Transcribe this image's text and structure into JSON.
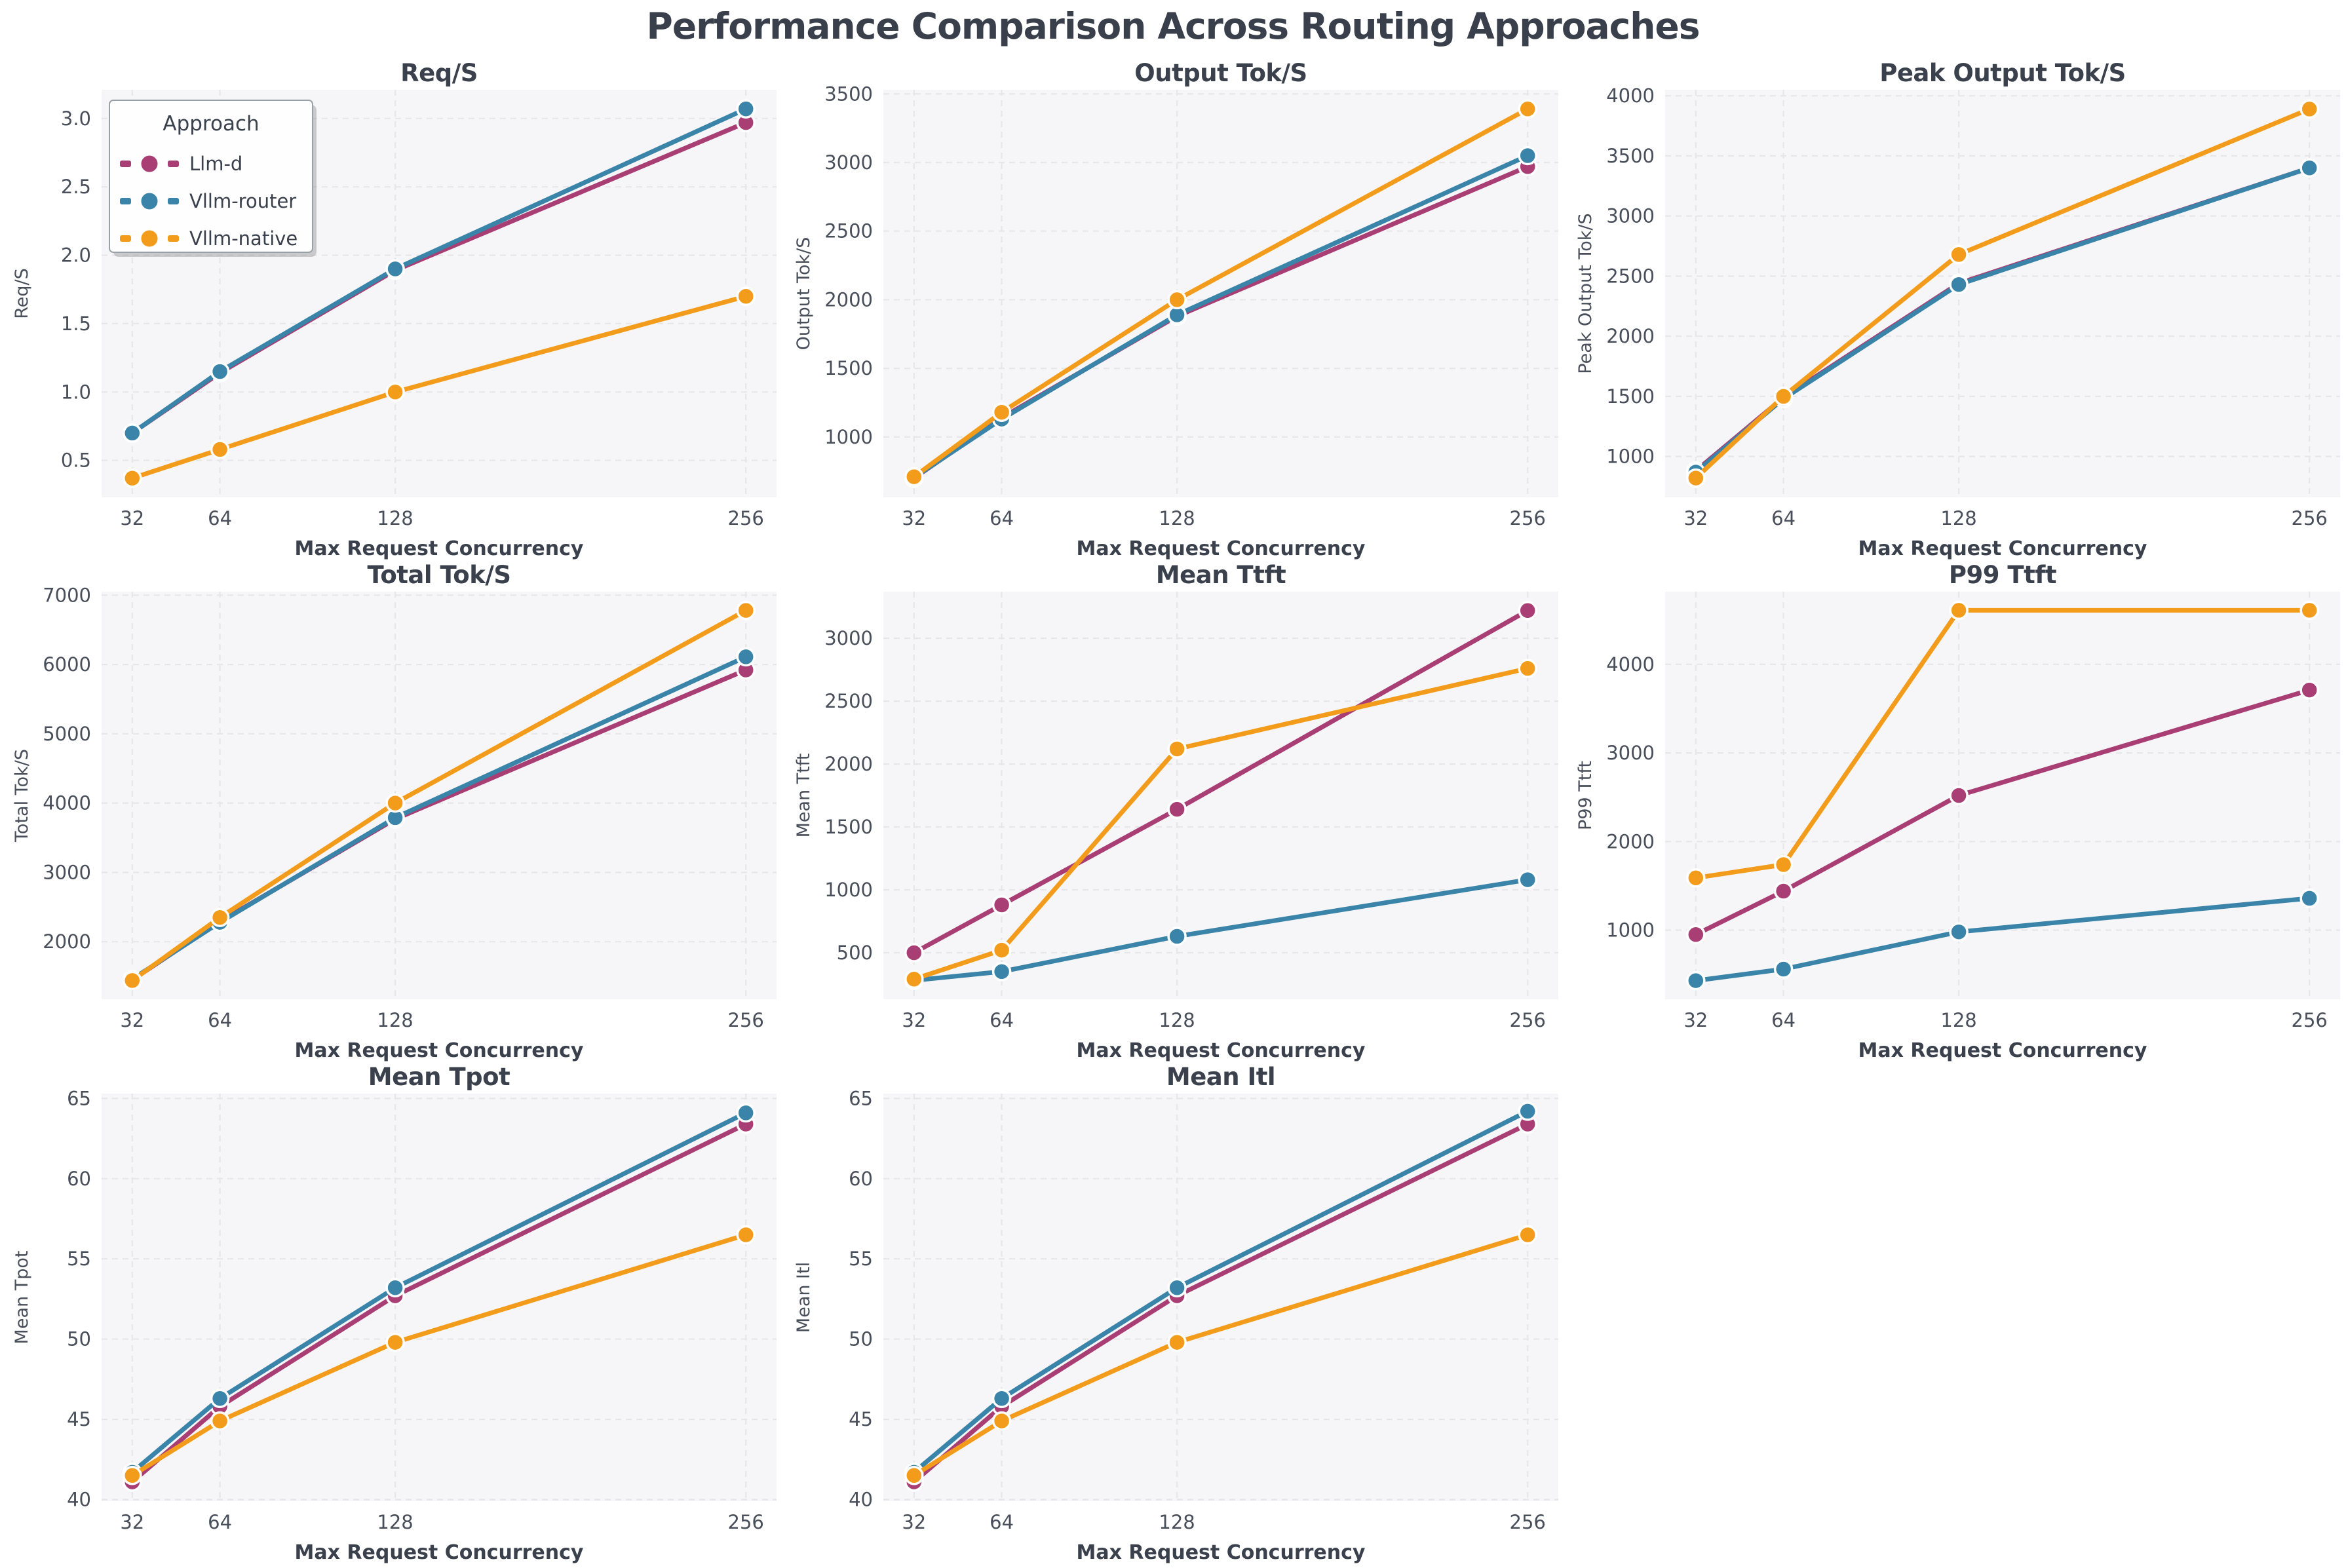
{
  "title": "Performance Comparison Across Routing Approaches",
  "x_axis": {
    "label": "Max Request Concurrency",
    "ticks": [
      "32",
      "64",
      "128",
      "256"
    ],
    "tick_values": [
      32,
      64,
      128,
      256
    ],
    "range": [
      20.8,
      267.2
    ]
  },
  "legend": {
    "title": "Approach",
    "chart_index": 0,
    "position": "upper-left-of-first-chart",
    "entries": [
      {
        "name": "Llm-d",
        "color": "#A83E74"
      },
      {
        "name": "Vllm-router",
        "color": "#3984A8"
      },
      {
        "name": "Vllm-native",
        "color": "#F39C1B"
      }
    ]
  },
  "style": {
    "figure_bg": "#FFFFFF",
    "plot_bg": "#F6F6F8",
    "grid_color": "#E7E7EA",
    "title_color": "#3A414C",
    "tick_color": "#494F5A",
    "legend_bg": "#FEFEFE",
    "legend_border": "#9AA0A8",
    "marker_edge": "#FFFFFF"
  },
  "chart_data": [
    {
      "type": "line",
      "title": "Req/S",
      "ylabel": "Req/S",
      "grid": true,
      "x": [
        32,
        64,
        128,
        256
      ],
      "yticks": [
        0.5,
        1.0,
        1.5,
        2.0,
        2.5,
        3.0
      ],
      "ytick_labels": [
        "0.5",
        "1.0",
        "1.5",
        "2.0",
        "2.5",
        "3.0"
      ],
      "ylim": [
        0.23,
        3.21
      ],
      "series": [
        {
          "name": "Llm-d",
          "values": [
            0.7,
            1.14,
            1.89,
            2.97
          ]
        },
        {
          "name": "Vllm-router",
          "values": [
            0.7,
            1.15,
            1.9,
            3.07
          ]
        },
        {
          "name": "Vllm-native",
          "values": [
            0.37,
            0.58,
            1.0,
            1.7
          ]
        }
      ]
    },
    {
      "type": "line",
      "title": "Output Tok/S",
      "ylabel": "Output Tok/S",
      "grid": true,
      "x": [
        32,
        64,
        128,
        256
      ],
      "yticks": [
        1000,
        1500,
        2000,
        2500,
        3000,
        3500
      ],
      "ytick_labels": [
        "1000",
        "1500",
        "2000",
        "2500",
        "3000",
        "3500"
      ],
      "ylim": [
        560,
        3530
      ],
      "series": [
        {
          "name": "Llm-d",
          "values": [
            700,
            1140,
            1880,
            2970
          ]
        },
        {
          "name": "Vllm-router",
          "values": [
            705,
            1130,
            1890,
            3050
          ]
        },
        {
          "name": "Vllm-native",
          "values": [
            710,
            1180,
            2000,
            3390
          ]
        }
      ]
    },
    {
      "type": "line",
      "title": "Peak Output Tok/S",
      "ylabel": "Peak Output Tok/S",
      "grid": true,
      "x": [
        32,
        64,
        128,
        256
      ],
      "yticks": [
        1000,
        1500,
        2000,
        2500,
        3000,
        3500,
        4000
      ],
      "ytick_labels": [
        "1000",
        "1500",
        "2000",
        "2500",
        "3000",
        "3500",
        "4000"
      ],
      "ylim": [
        660,
        4050
      ],
      "series": [
        {
          "name": "Llm-d",
          "values": [
            880,
            1490,
            2440,
            3400
          ]
        },
        {
          "name": "Vllm-router",
          "values": [
            870,
            1480,
            2430,
            3400
          ]
        },
        {
          "name": "Vllm-native",
          "values": [
            820,
            1500,
            2680,
            3890
          ]
        }
      ]
    },
    {
      "type": "line",
      "title": "Total Tok/S",
      "ylabel": "Total Tok/S",
      "grid": true,
      "x": [
        32,
        64,
        128,
        256
      ],
      "yticks": [
        2000,
        3000,
        4000,
        5000,
        6000,
        7000
      ],
      "ytick_labels": [
        "2000",
        "3000",
        "4000",
        "5000",
        "6000",
        "7000"
      ],
      "ylim": [
        1170,
        7050
      ],
      "series": [
        {
          "name": "Llm-d",
          "values": [
            1450,
            2290,
            3770,
            5920
          ]
        },
        {
          "name": "Vllm-router",
          "values": [
            1460,
            2280,
            3790,
            6110
          ]
        },
        {
          "name": "Vllm-native",
          "values": [
            1440,
            2350,
            4000,
            6780
          ]
        }
      ]
    },
    {
      "type": "line",
      "title": "Mean Ttft",
      "ylabel": "Mean Ttft",
      "grid": true,
      "x": [
        32,
        64,
        128,
        256
      ],
      "yticks": [
        500,
        1000,
        1500,
        2000,
        2500,
        3000
      ],
      "ytick_labels": [
        "500",
        "1000",
        "1500",
        "2000",
        "2500",
        "3000"
      ],
      "ylim": [
        130,
        3370
      ],
      "series": [
        {
          "name": "Llm-d",
          "values": [
            500,
            880,
            1640,
            3220
          ]
        },
        {
          "name": "Vllm-router",
          "values": [
            280,
            350,
            630,
            1080
          ]
        },
        {
          "name": "Vllm-native",
          "values": [
            290,
            520,
            2120,
            2760
          ]
        }
      ]
    },
    {
      "type": "line",
      "title": "P99 Ttft",
      "ylabel": "P99 Ttft",
      "grid": true,
      "x": [
        32,
        64,
        128,
        256
      ],
      "yticks": [
        1000,
        2000,
        3000,
        4000
      ],
      "ytick_labels": [
        "1000",
        "2000",
        "3000",
        "4000"
      ],
      "ylim": [
        220,
        4820
      ],
      "series": [
        {
          "name": "Llm-d",
          "values": [
            950,
            1440,
            2520,
            3710
          ]
        },
        {
          "name": "Vllm-router",
          "values": [
            430,
            560,
            980,
            1360
          ]
        },
        {
          "name": "Vllm-native",
          "values": [
            1590,
            1740,
            4610,
            4610
          ]
        }
      ]
    },
    {
      "type": "line",
      "title": "Mean Tpot",
      "ylabel": "Mean Tpot",
      "grid": true,
      "x": [
        32,
        64,
        128,
        256
      ],
      "yticks": [
        40,
        45,
        50,
        55,
        60,
        65
      ],
      "ytick_labels": [
        "40",
        "45",
        "50",
        "55",
        "60",
        "65"
      ],
      "ylim": [
        39.9,
        65.3
      ],
      "series": [
        {
          "name": "Llm-d",
          "values": [
            41.1,
            45.8,
            52.7,
            63.4
          ]
        },
        {
          "name": "Vllm-router",
          "values": [
            41.7,
            46.3,
            53.2,
            64.1
          ]
        },
        {
          "name": "Vllm-native",
          "values": [
            41.5,
            44.9,
            49.8,
            56.5
          ]
        }
      ]
    },
    {
      "type": "line",
      "title": "Mean Itl",
      "ylabel": "Mean Itl",
      "grid": true,
      "x": [
        32,
        64,
        128,
        256
      ],
      "yticks": [
        40,
        45,
        50,
        55,
        60,
        65
      ],
      "ytick_labels": [
        "40",
        "45",
        "50",
        "55",
        "60",
        "65"
      ],
      "ylim": [
        39.9,
        65.3
      ],
      "series": [
        {
          "name": "Llm-d",
          "values": [
            41.1,
            45.8,
            52.7,
            63.4
          ]
        },
        {
          "name": "Vllm-router",
          "values": [
            41.7,
            46.3,
            53.2,
            64.2
          ]
        },
        {
          "name": "Vllm-native",
          "values": [
            41.5,
            44.9,
            49.8,
            56.5
          ]
        }
      ]
    }
  ]
}
